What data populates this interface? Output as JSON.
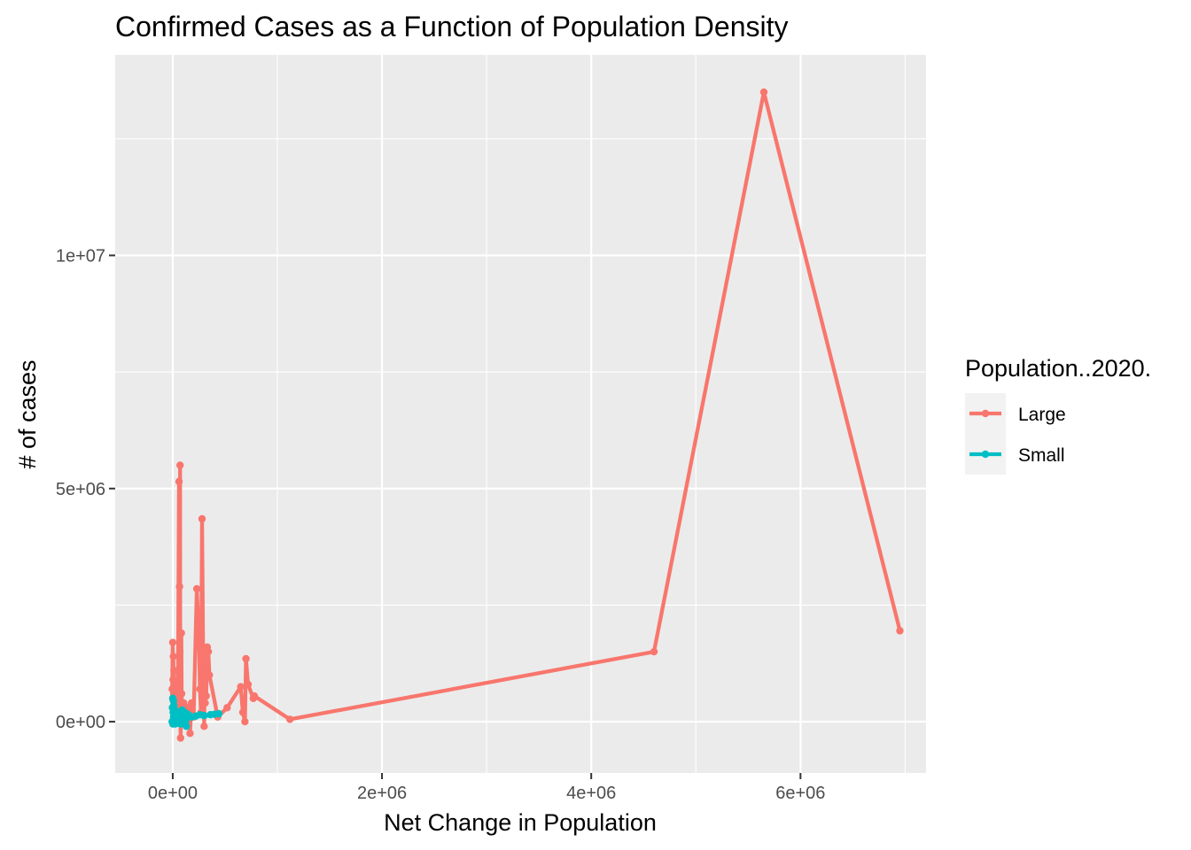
{
  "chart_data": {
    "type": "line",
    "title": "Confirmed Cases as a Function of Population Density",
    "xlabel": "Net Change in Population",
    "ylabel": "# of cases",
    "xlim": [
      -550000,
      7200000
    ],
    "ylim": [
      -1100000,
      14300000
    ],
    "x_ticks": [
      {
        "value": 0,
        "label": "0e+00"
      },
      {
        "value": 2000000,
        "label": "2e+06"
      },
      {
        "value": 4000000,
        "label": "4e+06"
      },
      {
        "value": 6000000,
        "label": "6e+06"
      }
    ],
    "x_minor_ticks": [
      1000000,
      3000000,
      5000000,
      7000000
    ],
    "y_ticks": [
      {
        "value": 0,
        "label": "0e+00"
      },
      {
        "value": 5000000,
        "label": "5e+06"
      },
      {
        "value": 10000000,
        "label": "1e+07"
      }
    ],
    "y_minor_ticks": [
      2500000,
      7500000,
      12500000
    ],
    "grid": true,
    "legend": {
      "title": "Population..2020.",
      "position": "right"
    },
    "series": [
      {
        "name": "Large",
        "color": "#F8766D",
        "x": [
          -5000,
          0,
          3000,
          6000,
          9000,
          12000,
          15000,
          18000,
          22000,
          30000,
          40000,
          50000,
          60000,
          65000,
          68000,
          70000,
          72000,
          75000,
          80000,
          82000,
          85000,
          88000,
          90000,
          95000,
          100000,
          105000,
          115000,
          140000,
          165000,
          180000,
          200000,
          230000,
          250000,
          260000,
          270000,
          280000,
          290000,
          300000,
          305000,
          310000,
          315000,
          320000,
          330000,
          340000,
          350000,
          430000,
          520000,
          650000,
          670000,
          690000,
          700000,
          720000,
          770000,
          780000,
          1120000,
          4600000,
          5650000,
          6950000
        ],
        "y": [
          700000,
          1700000,
          900000,
          1400000,
          600000,
          1100000,
          300000,
          800000,
          200000,
          500000,
          100000,
          400000,
          5150000,
          2900000,
          1500000,
          5500000,
          400000,
          -350000,
          200000,
          1900000,
          600000,
          100000,
          300000,
          50000,
          150000,
          400000,
          50000,
          300000,
          -250000,
          400000,
          100000,
          2850000,
          1800000,
          700000,
          200000,
          4350000,
          1500000,
          -100000,
          900000,
          400000,
          1200000,
          550000,
          1600000,
          1500000,
          1000000,
          100000,
          300000,
          750000,
          200000,
          0,
          1350000,
          800000,
          500000,
          550000,
          50000,
          1500000,
          13500000,
          1950000
        ]
      },
      {
        "name": "Small",
        "color": "#00BFC4",
        "x": [
          -6000,
          -3000,
          0,
          2000,
          4000,
          6000,
          8000,
          10000,
          14000,
          18000,
          24000,
          30000,
          40000,
          50000,
          60000,
          75000,
          90000,
          105000,
          115000,
          130000,
          150000,
          180000,
          220000,
          260000,
          300000,
          360000,
          400000,
          440000
        ],
        "y": [
          0,
          300000,
          500000,
          -50000,
          200000,
          450000,
          100000,
          350000,
          50000,
          250000,
          -50000,
          150000,
          50000,
          200000,
          100000,
          -50000,
          250000,
          50000,
          200000,
          -100000,
          150000,
          100000,
          120000,
          150000,
          130000,
          150000,
          160000,
          170000
        ]
      }
    ]
  }
}
